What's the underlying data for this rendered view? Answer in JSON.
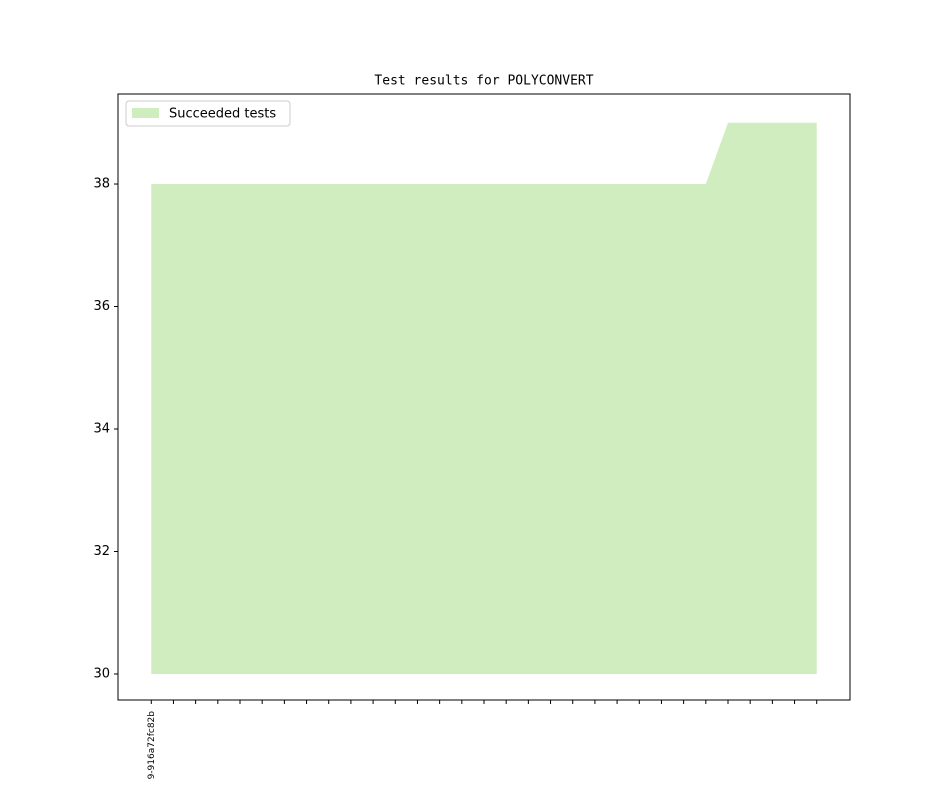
{
  "chart_data": {
    "type": "area",
    "title": "Test results for POLYCONVERT",
    "categories": [
      "9-916a72fc82b",
      null,
      null,
      null,
      null,
      null,
      null,
      null,
      null,
      null,
      null,
      null,
      null,
      null,
      null,
      null,
      null,
      null,
      null,
      null,
      null,
      null,
      null,
      null,
      null,
      null,
      null,
      null,
      null,
      null,
      null
    ],
    "series": [
      {
        "name": "Succeeded tests",
        "color": "#cfedbf",
        "values": [
          38,
          38,
          38,
          38,
          38,
          38,
          38,
          38,
          38,
          38,
          38,
          38,
          38,
          38,
          38,
          38,
          38,
          38,
          38,
          38,
          38,
          38,
          38,
          38,
          38,
          38,
          39,
          39,
          39,
          39,
          39
        ]
      }
    ],
    "baseline": 30,
    "ylim": [
      29.575,
      39.47
    ],
    "yticks": [
      30,
      32,
      34,
      36,
      38
    ],
    "legend": "upper left",
    "grid": false
  }
}
